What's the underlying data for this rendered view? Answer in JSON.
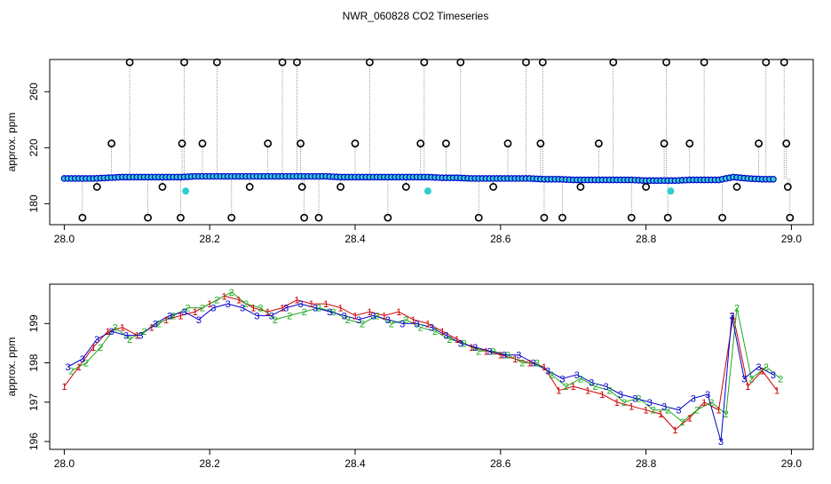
{
  "title": "NWR_060828  CO2 Timeseries",
  "colors": {
    "black": "#000000",
    "blue": "#0000cc",
    "red": "#cc0000",
    "green": "#22aa22",
    "cyan": "#33cccc",
    "gray": "#888888",
    "orange": "#dd8800"
  },
  "chart_data": [
    {
      "type": "scatter",
      "title": "NWR_060828  CO2 Timeseries",
      "xlabel": "",
      "ylabel": "approx. ppm",
      "xlim": [
        27.98,
        29.03
      ],
      "ylim": [
        165,
        283
      ],
      "xticks": [
        "28.0",
        "28.2",
        "28.4",
        "28.6",
        "28.8",
        "29.0"
      ],
      "yticks": [
        "180",
        "220",
        "260"
      ],
      "grid": false,
      "series": [
        {
          "color": "blue",
          "marker": "circle",
          "x": [
            28.0,
            28.02,
            28.04,
            28.06,
            28.08,
            28.1,
            28.12,
            28.14,
            28.16,
            28.18,
            28.2,
            28.22,
            28.24,
            28.26,
            28.28,
            28.3,
            28.32,
            28.34,
            28.36,
            28.38,
            28.4,
            28.42,
            28.44,
            28.46,
            28.48,
            28.5,
            28.52,
            28.54,
            28.56,
            28.58,
            28.6,
            28.62,
            28.64,
            28.66,
            28.68,
            28.7,
            28.72,
            28.74,
            28.76,
            28.78,
            28.8,
            28.82,
            28.84,
            28.86,
            28.88,
            28.9,
            28.92,
            28.94,
            28.96,
            28.98
          ],
          "y": [
            198,
            198,
            198,
            198.5,
            199,
            199,
            199,
            199,
            199,
            199.5,
            199.5,
            199.5,
            199.5,
            199.5,
            199.5,
            199.5,
            199.5,
            199.5,
            199.5,
            199,
            199,
            199,
            199,
            199,
            199,
            199,
            198.5,
            198.5,
            198,
            198,
            198,
            198,
            198,
            197.5,
            197.5,
            197,
            197,
            197,
            197,
            197,
            196.5,
            196.5,
            196.5,
            197,
            197,
            197,
            199,
            198,
            197.5,
            197.5
          ]
        },
        {
          "color": "black",
          "marker": "open-circle",
          "x": [
            28.025,
            28.045,
            28.065,
            28.09,
            28.115,
            28.135,
            28.16,
            28.162,
            28.165,
            28.19,
            28.21,
            28.23,
            28.255,
            28.28,
            28.3,
            28.32,
            28.325,
            28.327,
            28.33,
            28.35,
            28.38,
            28.4,
            28.42,
            28.445,
            28.47,
            28.49,
            28.495,
            28.525,
            28.545,
            28.57,
            28.59,
            28.61,
            28.635,
            28.655,
            28.658,
            28.66,
            28.685,
            28.71,
            28.735,
            28.755,
            28.78,
            28.8,
            28.825,
            28.828,
            28.83,
            28.86,
            28.88,
            28.905,
            28.925,
            28.955,
            28.965,
            28.99,
            28.993,
            28.995,
            28.998
          ],
          "y": [
            170,
            192,
            223,
            281,
            170,
            192,
            170,
            223,
            281,
            223,
            281,
            170,
            192,
            223,
            281,
            281,
            223,
            192,
            170,
            170,
            192,
            223,
            281,
            170,
            192,
            223,
            281,
            223,
            281,
            170,
            192,
            223,
            281,
            223,
            281,
            170,
            170,
            192,
            223,
            281,
            170,
            192,
            223,
            281,
            170,
            223,
            281,
            170,
            192,
            223,
            281,
            281,
            223,
            192,
            170
          ]
        },
        {
          "color": "cyan",
          "marker": "circle",
          "x": [
            28.167,
            28.5,
            28.834
          ],
          "y": [
            189,
            189,
            189
          ]
        }
      ]
    },
    {
      "type": "scatter",
      "title": "",
      "xlabel": "",
      "ylabel": "approx. ppm",
      "xlim": [
        27.98,
        29.03
      ],
      "ylim": [
        195.8,
        200
      ],
      "xticks": [
        "28.0",
        "28.2",
        "28.4",
        "28.6",
        "28.8",
        "29.0"
      ],
      "yticks": [
        "196",
        "197",
        "198",
        "199"
      ],
      "grid": false,
      "series": [
        {
          "name": "1",
          "color": "red",
          "marker": "1",
          "x": [
            28.0,
            28.02,
            28.04,
            28.06,
            28.08,
            28.1,
            28.12,
            28.14,
            28.16,
            28.18,
            28.2,
            28.22,
            28.24,
            28.26,
            28.28,
            28.3,
            28.32,
            28.34,
            28.36,
            28.38,
            28.4,
            28.42,
            28.44,
            28.46,
            28.48,
            28.5,
            28.52,
            28.54,
            28.56,
            28.58,
            28.6,
            28.62,
            28.64,
            28.66,
            28.68,
            28.7,
            28.72,
            28.74,
            28.76,
            28.78,
            28.8,
            28.82,
            28.84,
            28.86,
            28.88,
            28.9,
            28.92,
            28.94,
            28.96,
            28.98
          ],
          "y": [
            197.4,
            197.9,
            198.4,
            198.8,
            198.9,
            198.7,
            198.9,
            199.1,
            199.2,
            199.3,
            199.5,
            199.7,
            199.6,
            199.4,
            199.3,
            199.4,
            199.6,
            199.5,
            199.5,
            199.4,
            199.2,
            199.3,
            199.2,
            199.3,
            199.1,
            199.0,
            198.8,
            198.6,
            198.4,
            198.3,
            198.2,
            198.1,
            198.0,
            197.9,
            197.3,
            197.4,
            197.3,
            197.2,
            197.0,
            196.9,
            196.8,
            196.7,
            196.3,
            196.6,
            197.0,
            196.8,
            199.2,
            197.4,
            197.8,
            197.3
          ]
        },
        {
          "name": "2",
          "color": "green",
          "marker": "2",
          "x": [
            28.01,
            28.03,
            28.05,
            28.07,
            28.09,
            28.11,
            28.13,
            28.15,
            28.17,
            28.19,
            28.21,
            28.23,
            28.25,
            28.27,
            28.29,
            28.31,
            28.33,
            28.35,
            28.37,
            28.39,
            28.41,
            28.43,
            28.45,
            28.47,
            28.49,
            28.51,
            28.53,
            28.55,
            28.57,
            28.59,
            28.61,
            28.63,
            28.65,
            28.67,
            28.69,
            28.71,
            28.73,
            28.75,
            28.77,
            28.79,
            28.81,
            28.83,
            28.85,
            28.87,
            28.89,
            28.91,
            28.925,
            28.945,
            28.965,
            28.985
          ],
          "y": [
            197.8,
            198.0,
            198.4,
            198.9,
            198.6,
            198.8,
            199.0,
            199.2,
            199.4,
            199.4,
            199.6,
            199.8,
            199.5,
            199.4,
            199.1,
            199.2,
            199.3,
            199.4,
            199.3,
            199.1,
            199.0,
            199.2,
            199.0,
            199.1,
            198.9,
            198.8,
            198.6,
            198.5,
            198.3,
            198.3,
            198.2,
            198.0,
            198.0,
            197.7,
            197.4,
            197.6,
            197.4,
            197.3,
            197.0,
            197.1,
            196.8,
            196.8,
            196.5,
            196.8,
            197.0,
            196.7,
            199.4,
            197.6,
            197.9,
            197.6
          ]
        },
        {
          "name": "3",
          "color": "blue",
          "marker": "3",
          "x": [
            28.005,
            28.025,
            28.045,
            28.065,
            28.085,
            28.105,
            28.125,
            28.145,
            28.165,
            28.185,
            28.205,
            28.225,
            28.245,
            28.265,
            28.285,
            28.305,
            28.325,
            28.345,
            28.365,
            28.385,
            28.405,
            28.425,
            28.445,
            28.465,
            28.485,
            28.505,
            28.525,
            28.545,
            28.565,
            28.585,
            28.605,
            28.625,
            28.645,
            28.665,
            28.685,
            28.705,
            28.725,
            28.745,
            28.765,
            28.785,
            28.805,
            28.825,
            28.845,
            28.865,
            28.885,
            28.903,
            28.918,
            28.935,
            28.955,
            28.975
          ],
          "y": [
            197.9,
            198.1,
            198.6,
            198.8,
            198.7,
            198.7,
            199.0,
            199.2,
            199.3,
            199.1,
            199.4,
            199.5,
            199.4,
            199.2,
            199.2,
            199.4,
            199.5,
            199.4,
            199.3,
            199.2,
            199.1,
            199.2,
            199.1,
            199.0,
            199.0,
            198.9,
            198.7,
            198.5,
            198.4,
            198.3,
            198.2,
            198.2,
            198.0,
            197.8,
            197.6,
            197.7,
            197.5,
            197.4,
            197.2,
            197.1,
            197.0,
            196.9,
            196.8,
            197.1,
            197.2,
            196.0,
            199.2,
            197.6,
            197.9,
            197.7
          ]
        }
      ]
    }
  ]
}
